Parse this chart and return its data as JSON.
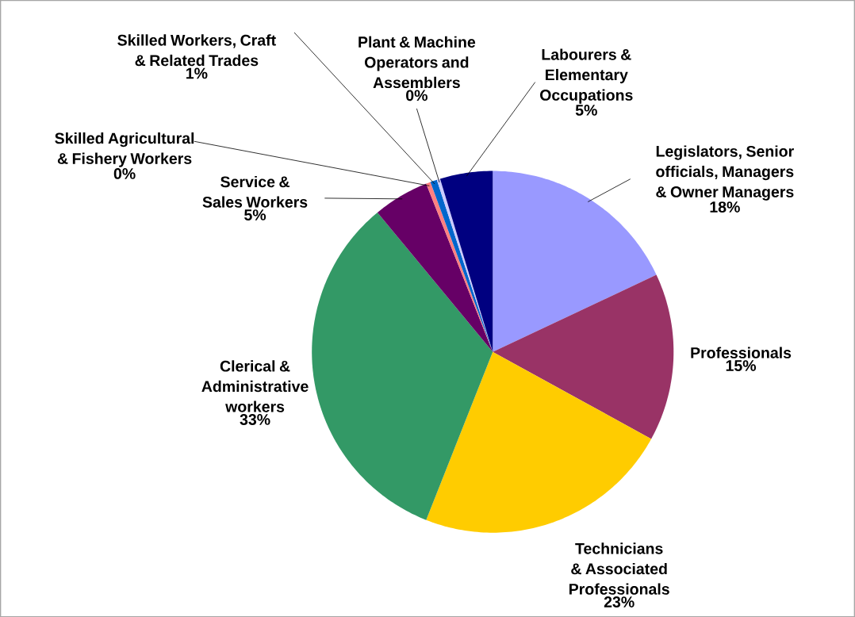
{
  "chart_data": {
    "type": "pie",
    "categories": [
      "Legislators, Senior officials, Managers & Owner Managers",
      "Professionals",
      "Technicians & Associated Professionals",
      "Clerical & Administrative workers",
      "Service & Sales Workers",
      "Skilled Agricultural & Fishery Workers",
      "Skilled Workers, Craft & Related Trades",
      "Plant & Machine Operators and Assemblers",
      "Labourers & Elementary Occupations"
    ],
    "values": [
      18,
      15,
      23,
      33,
      5,
      0.4,
      0.6,
      0.3,
      4.7
    ],
    "value_labels": [
      "18%",
      "15%",
      "23%",
      "33%",
      "5%",
      "0%",
      "1%",
      "0%",
      "5%"
    ],
    "colors": [
      "#9999ff",
      "#993366",
      "#ffcc00",
      "#339966",
      "#660066",
      "#ff8080",
      "#0066cc",
      "#ccccff",
      "#000080"
    ],
    "legend": false
  }
}
